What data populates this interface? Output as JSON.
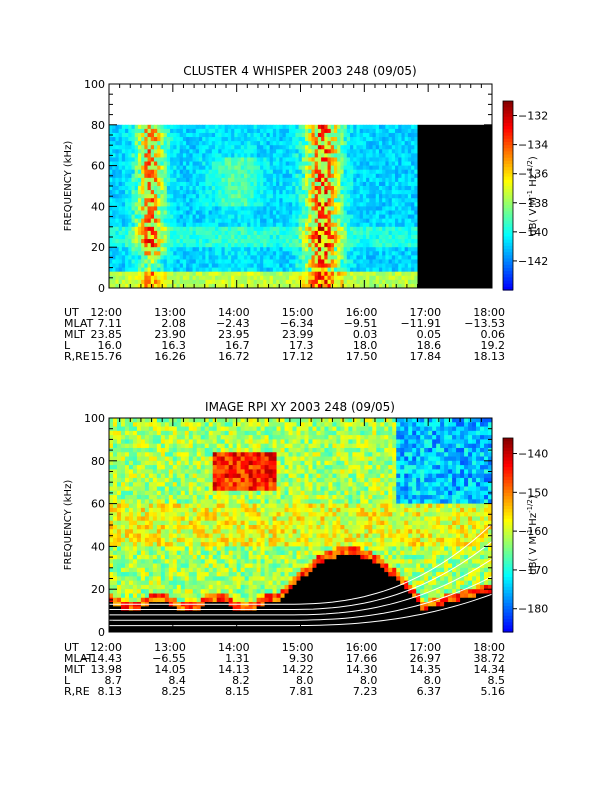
{
  "chart_data": [
    {
      "type": "heatmap",
      "title": "CLUSTER 4 WHISPER 2003 248 (09/05)",
      "ylabel": "FREQUENCY (kHz)",
      "ylim": [
        0,
        100
      ],
      "yticks": [
        "0",
        "20",
        "40",
        "60",
        "80",
        "100"
      ],
      "data_upper_khz": 80,
      "no_data_from": "16:50",
      "colorbar": {
        "label": "dB( V M",
        "label_exp1": "-1",
        "label_mid": " Hz",
        "label_exp2": "-1/2",
        "label_end": ")",
        "range": [
          -144,
          -131
        ],
        "ticks": [
          "-132",
          "-134",
          "-136",
          "-138",
          "-140",
          "-142"
        ]
      },
      "x_labels": [
        "12:00",
        "13:00",
        "14:00",
        "15:00",
        "16:00",
        "17:00",
        "18:00"
      ],
      "ephemeris": [
        {
          "name": "UT",
          "values": [
            "12:00",
            "13:00",
            "14:00",
            "15:00",
            "16:00",
            "17:00",
            "18:00"
          ]
        },
        {
          "name": "MLAT",
          "values": [
            "7.11",
            "2.08",
            "−2.43",
            "−6.34",
            "−9.51",
            "−11.91",
            "−13.53"
          ]
        },
        {
          "name": "MLT",
          "values": [
            "23.85",
            "23.90",
            "23.95",
            "23.99",
            "0.03",
            "0.05",
            "0.06"
          ]
        },
        {
          "name": "L",
          "values": [
            "16.0",
            "16.3",
            "16.7",
            "17.3",
            "18.0",
            "18.6",
            "19.2"
          ]
        },
        {
          "name": "R,RE",
          "values": [
            "15.76",
            "16.26",
            "16.72",
            "17.12",
            "17.50",
            "17.84",
            "18.13"
          ]
        }
      ]
    },
    {
      "type": "heatmap",
      "title": "IMAGE RPI XY 2003 248 (09/05)",
      "ylabel": "FREQUENCY (kHz)",
      "ylim": [
        0,
        100
      ],
      "yticks": [
        "0",
        "20",
        "40",
        "60",
        "80",
        "100"
      ],
      "colorbar": {
        "label": "dB( V M",
        "label_exp1": "-1",
        "label_mid": " Hz",
        "label_exp2": "-1/2",
        "label_end": ")",
        "range": [
          -186,
          -136
        ],
        "ticks": [
          "-140",
          "-150",
          "-160",
          "-170",
          "-180"
        ]
      },
      "x_labels": [
        "12:00",
        "13:00",
        "14:00",
        "15:00",
        "16:00",
        "17:00",
        "18:00"
      ],
      "ephemeris": [
        {
          "name": "UT",
          "values": [
            "12:00",
            "13:00",
            "14:00",
            "15:00",
            "16:00",
            "17:00",
            "18:00"
          ]
        },
        {
          "name": "MLAT",
          "values": [
            "−14.43",
            "−6.55",
            "1.31",
            "9.30",
            "17.66",
            "26.97",
            "38.72"
          ]
        },
        {
          "name": "MLT",
          "values": [
            "13.98",
            "14.05",
            "14.13",
            "14.22",
            "14.30",
            "14.35",
            "14.34"
          ]
        },
        {
          "name": "L",
          "values": [
            "8.7",
            "8.4",
            "8.2",
            "8.0",
            "8.0",
            "8.0",
            "8.5"
          ]
        },
        {
          "name": "R,RE",
          "values": [
            "8.13",
            "8.25",
            "8.15",
            "7.81",
            "7.23",
            "6.37",
            "5.16"
          ]
        }
      ]
    }
  ]
}
